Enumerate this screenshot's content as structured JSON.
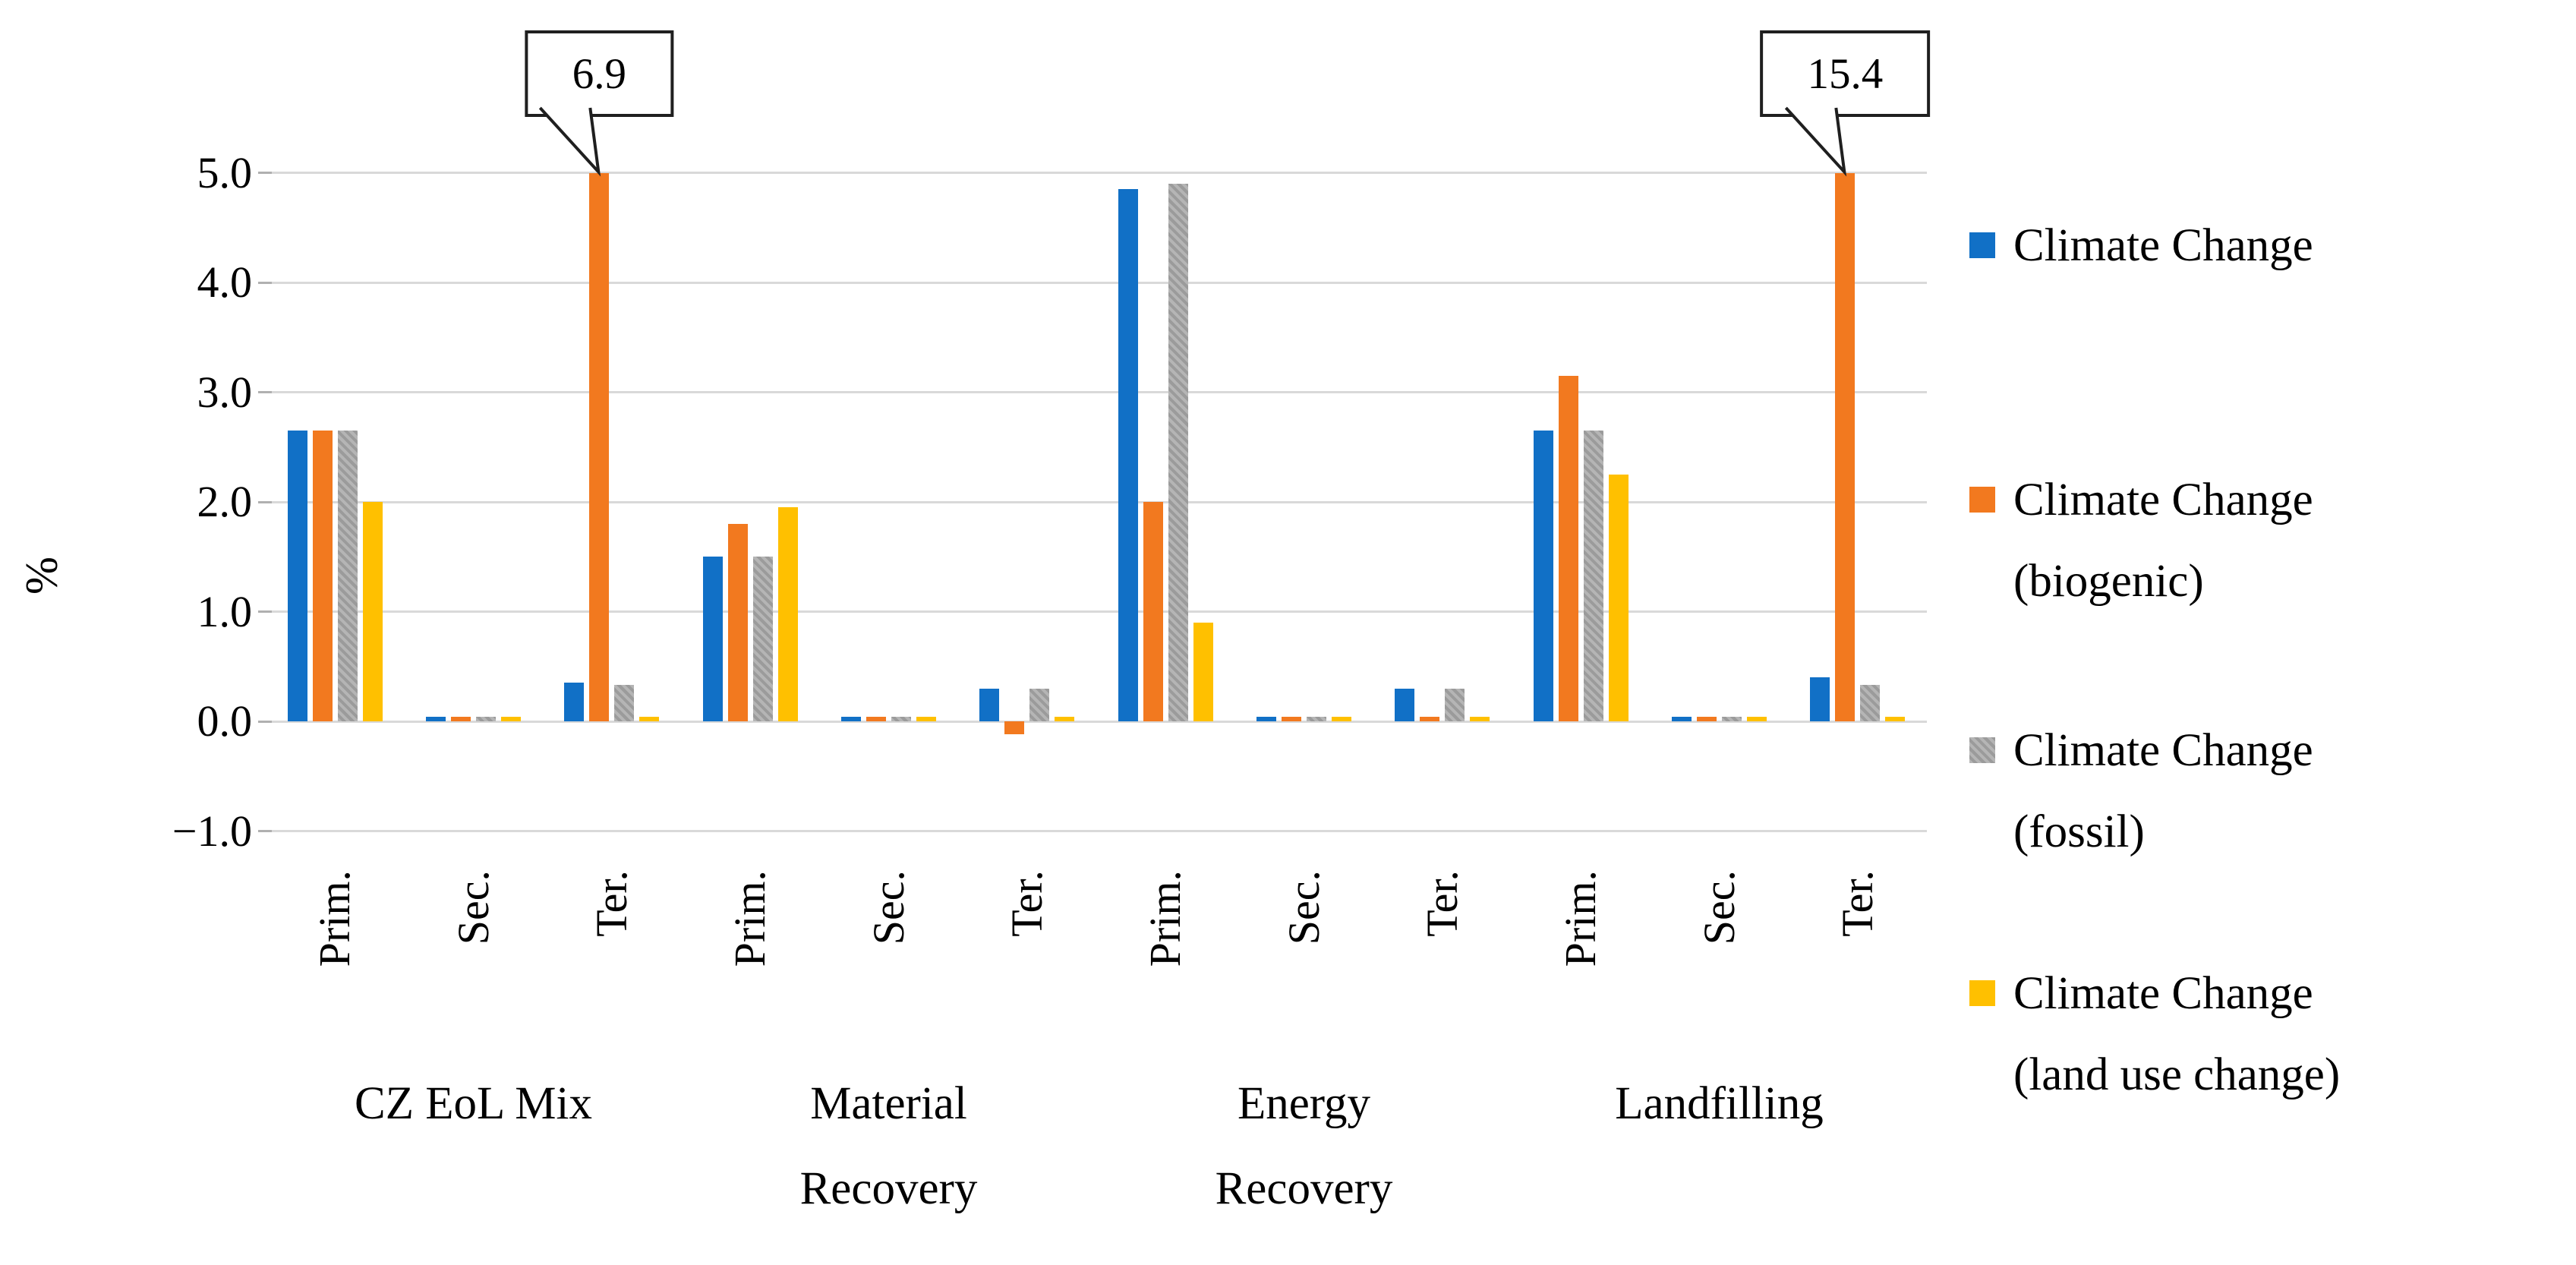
{
  "chart_data": {
    "type": "bar",
    "title": "",
    "ylabel": "%",
    "ylim": [
      -1.0,
      5.0
    ],
    "bar_clip_at": 5.0,
    "grid": true,
    "legend_position": "right",
    "y_tick_labels": [
      "5.0",
      "4.0",
      "3.0",
      "2.0",
      "1.0",
      "0.0",
      "−1.0"
    ],
    "y_tick_values": [
      5.0,
      4.0,
      3.0,
      2.0,
      1.0,
      0.0,
      -1.0
    ],
    "series": [
      {
        "name": "Climate Change",
        "color": "#1170c6",
        "pattern": "solid",
        "legend_lines": [
          "Climate Change"
        ]
      },
      {
        "name": "Climate Change (biogenic)",
        "color": "#f2791f",
        "pattern": "solid",
        "legend_lines": [
          "Climate Change",
          "(biogenic)"
        ]
      },
      {
        "name": "Climate Change (fossil)",
        "color": "#a6a6a6",
        "pattern": "hatch",
        "legend_lines": [
          "Climate Change",
          "(fossil)"
        ]
      },
      {
        "name": "Climate Change (land use change)",
        "color": "#ffc000",
        "pattern": "solid",
        "legend_lines": [
          "Climate Change",
          "(land use change)"
        ]
      }
    ],
    "groups": [
      {
        "label_lines": [
          "CZ EoL Mix"
        ],
        "subgroups": [
          {
            "label": "Prim.",
            "values": [
              2.65,
              2.65,
              2.65,
              2.0
            ]
          },
          {
            "label": "Sec.",
            "values": [
              0.04,
              0.04,
              0.04,
              0.04
            ]
          },
          {
            "label": "Ter.",
            "values": [
              0.35,
              6.9,
              0.33,
              0.04
            ]
          }
        ]
      },
      {
        "label_lines": [
          "Material",
          "Recovery"
        ],
        "subgroups": [
          {
            "label": "Prim.",
            "values": [
              1.5,
              1.8,
              1.5,
              1.95
            ]
          },
          {
            "label": "Sec.",
            "values": [
              0.04,
              0.04,
              0.04,
              0.04
            ]
          },
          {
            "label": "Ter.",
            "values": [
              0.3,
              -0.12,
              0.3,
              0.04
            ]
          }
        ]
      },
      {
        "label_lines": [
          "Energy",
          "Recovery"
        ],
        "subgroups": [
          {
            "label": "Prim.",
            "values": [
              4.85,
              2.0,
              4.9,
              0.9
            ]
          },
          {
            "label": "Sec.",
            "values": [
              0.04,
              0.04,
              0.04,
              0.04
            ]
          },
          {
            "label": "Ter.",
            "values": [
              0.3,
              0.04,
              0.3,
              0.04
            ]
          }
        ]
      },
      {
        "label_lines": [
          "Landfilling"
        ],
        "subgroups": [
          {
            "label": "Prim.",
            "values": [
              2.65,
              3.15,
              2.65,
              2.25
            ]
          },
          {
            "label": "Sec.",
            "values": [
              0.04,
              0.04,
              0.04,
              0.04
            ]
          },
          {
            "label": "Ter.",
            "values": [
              0.4,
              15.4,
              0.33,
              0.04
            ]
          }
        ]
      }
    ],
    "annotations": [
      {
        "text": "6.9",
        "group_index": 0,
        "subgroup_index": 2,
        "series_index": 1
      },
      {
        "text": "15.4",
        "group_index": 3,
        "subgroup_index": 2,
        "series_index": 1
      }
    ]
  }
}
